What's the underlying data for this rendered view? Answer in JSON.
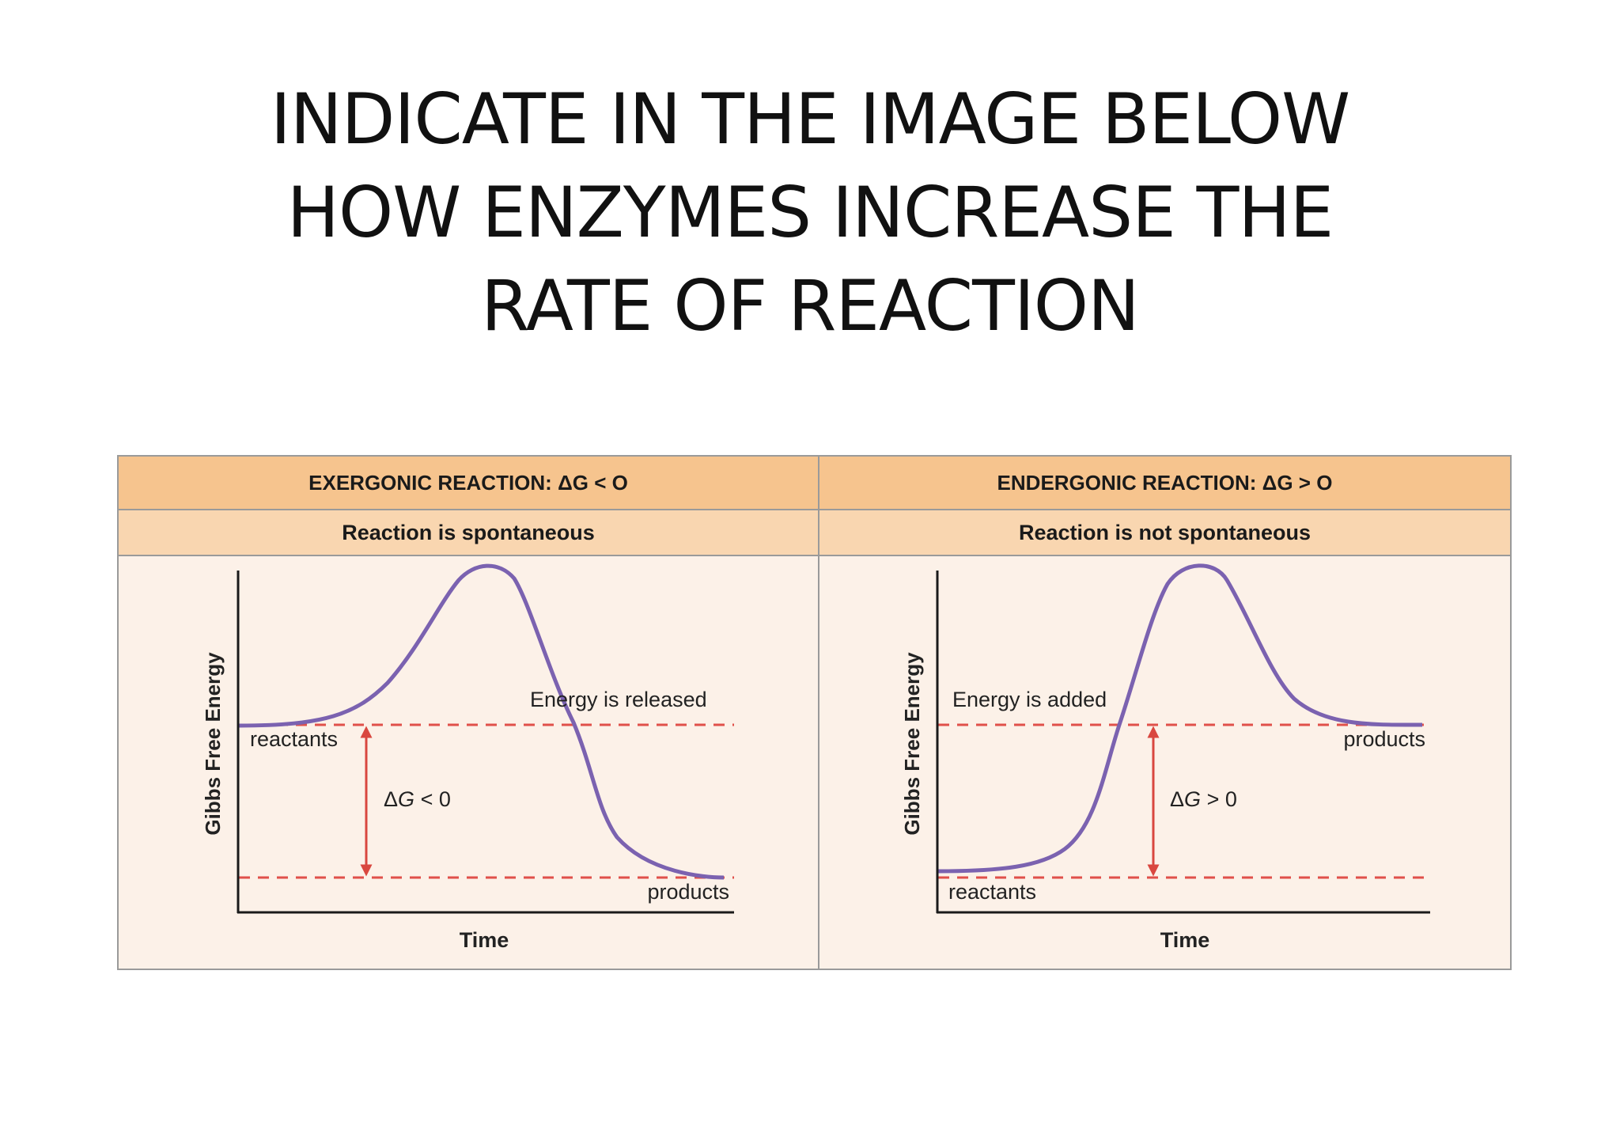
{
  "slide": {
    "title_lines": [
      "INDICATE IN THE IMAGE BELOW",
      "HOW ENZYMES INCREASE THE",
      "RATE OF REACTION"
    ]
  },
  "colors": {
    "header_dark": "#f6c48e",
    "header_light": "#f9d6b0",
    "panel_bg": "#fcf1e8",
    "curve": "#7b62b0",
    "dashed_line": "#e0504a",
    "arrow": "#d9473f",
    "axis": "#1a1a1a"
  },
  "panels": [
    {
      "header": "EXERGONIC REACTION: ΔG < O",
      "subheader": "Reaction is spontaneous",
      "ylabel": "Gibbs Free Energy",
      "xlabel": "Time",
      "energy_label": "Energy is released",
      "reactants_label": "reactants",
      "products_label": "products",
      "delta_g_symbol": "Δ",
      "delta_g_var": "G",
      "delta_g_rest": " < 0"
    },
    {
      "header": "ENDERGONIC REACTION: ΔG > O",
      "subheader": "Reaction is not spontaneous",
      "ylabel": "Gibbs Free Energy",
      "xlabel": "Time",
      "energy_label": "Energy is added",
      "reactants_label": "reactants",
      "products_label": "products",
      "delta_g_symbol": "Δ",
      "delta_g_var": "G",
      "delta_g_rest": " > 0"
    }
  ]
}
